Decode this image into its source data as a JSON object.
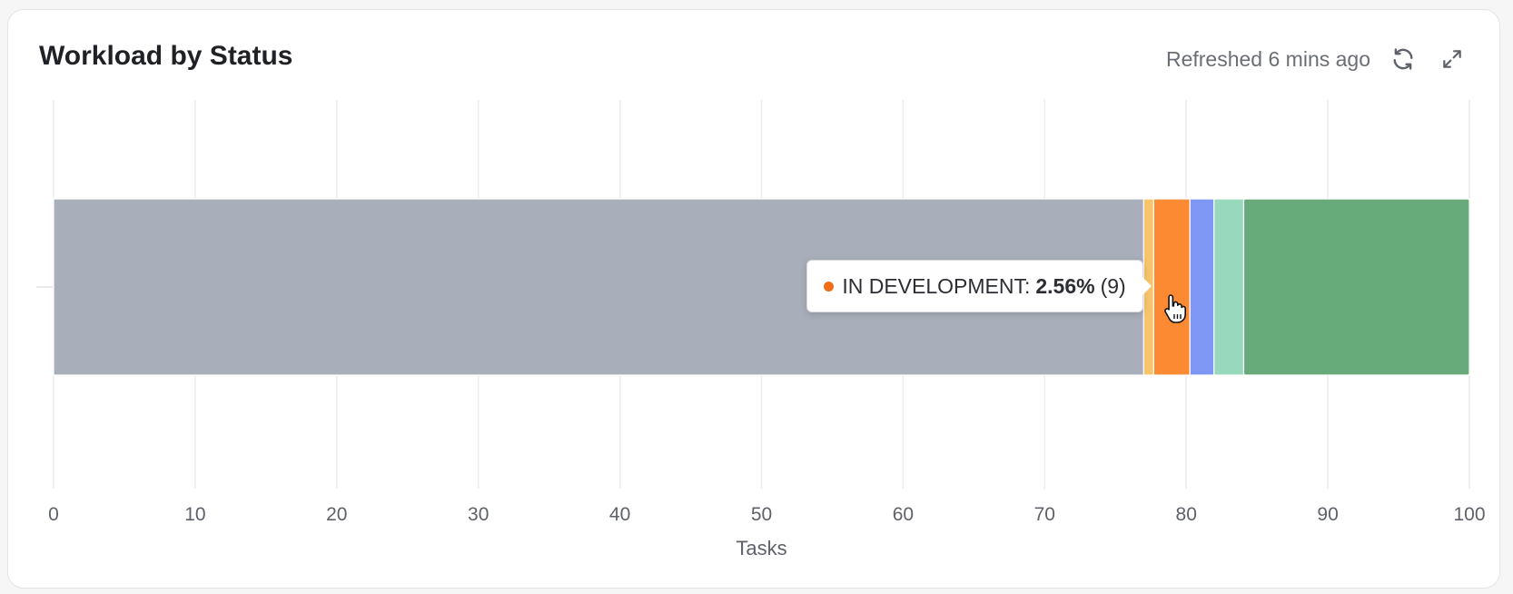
{
  "header": {
    "title": "Workload by Status",
    "refreshed": "Refreshed 6 mins ago",
    "refresh_icon": "refresh-icon",
    "expand_icon": "expand-icon"
  },
  "chart_data": {
    "type": "bar",
    "orientation": "horizontal-stacked",
    "xlabel": "Tasks",
    "xlim": [
      0,
      100
    ],
    "xticks": [
      0,
      10,
      20,
      30,
      40,
      50,
      60,
      70,
      80,
      90,
      100
    ],
    "grid": true,
    "series": [
      {
        "name": "",
        "value": 77.0,
        "color": "#a9afba"
      },
      {
        "name": "",
        "value": 0.7,
        "color": "#f7c46c"
      },
      {
        "name": "IN DEVELOPMENT",
        "value": 2.56,
        "color": "#fb8a32"
      },
      {
        "name": "",
        "value": 1.7,
        "color": "#7f97f5"
      },
      {
        "name": "",
        "value": 2.1,
        "color": "#98d8bd"
      },
      {
        "name": "",
        "value": 15.94,
        "color": "#66ab79"
      }
    ]
  },
  "tooltip": {
    "label": "IN DEVELOPMENT:",
    "percent": "2.56%",
    "count": "(9)",
    "dot_color": "#f06d1a"
  }
}
